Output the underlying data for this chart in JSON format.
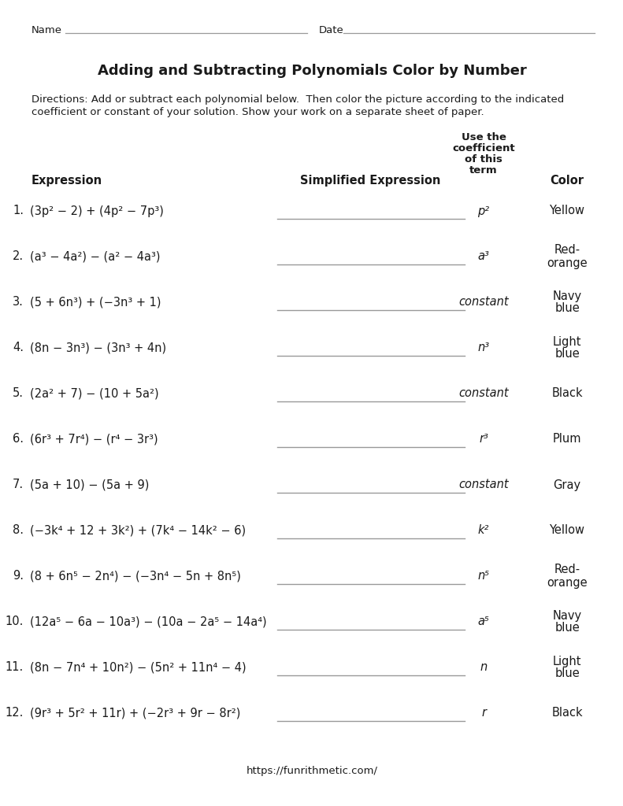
{
  "title": "Adding and Subtracting Polynomials Color by Number",
  "directions_line1": "Directions: Add or subtract each polynomial below.  Then color the picture according to the indicated",
  "directions_line2": "coefficient or constant of your solution. Show your work on a separate sheet of paper.",
  "name_label": "Name",
  "date_label": "Date",
  "problems": [
    {
      "num": "1.",
      "expr": "(3p² − 2) + (4p² − 7p³)",
      "term": "p²",
      "color_name": "Yellow",
      "two_line": false
    },
    {
      "num": "2.",
      "expr": "(a³ − 4a²) − (a² − 4a³)",
      "term": "a³",
      "color_name": "Red-\norange",
      "two_line": true
    },
    {
      "num": "3.",
      "expr": "(5 + 6n³) + (−3n³ + 1)",
      "term": "constant",
      "color_name": "Navy\nblue",
      "two_line": true
    },
    {
      "num": "4.",
      "expr": "(8n − 3n³) − (3n³ + 4n)",
      "term": "n³",
      "color_name": "Light\nblue",
      "two_line": true
    },
    {
      "num": "5.",
      "expr": "(2a² + 7) − (10 + 5a²)",
      "term": "constant",
      "color_name": "Black",
      "two_line": false
    },
    {
      "num": "6.",
      "expr": "(6r³ + 7r⁴) − (r⁴ − 3r³)",
      "term": "r³",
      "color_name": "Plum",
      "two_line": false
    },
    {
      "num": "7.",
      "expr": "(5a + 10) − (5a + 9)",
      "term": "constant",
      "color_name": "Gray",
      "two_line": false
    },
    {
      "num": "8.",
      "expr": "(−3k⁴ + 12 + 3k²) + (7k⁴ − 14k² − 6)",
      "term": "k²",
      "color_name": "Yellow",
      "two_line": false
    },
    {
      "num": "9.",
      "expr": "(8 + 6n⁵ − 2n⁴) − (−3n⁴ − 5n + 8n⁵)",
      "term": "n⁵",
      "color_name": "Red-\norange",
      "two_line": true
    },
    {
      "num": "10.",
      "expr": "(12a⁵ − 6a − 10a³) − (10a − 2a⁵ − 14a⁴)",
      "term": "a⁵",
      "color_name": "Navy\nblue",
      "two_line": true
    },
    {
      "num": "11.",
      "expr": "(8n − 7n⁴ + 10n²) − (5n² + 11n⁴ − 4)",
      "term": "n",
      "color_name": "Light\nblue",
      "two_line": true
    },
    {
      "num": "12.",
      "expr": "(9r³ + 5r² + 11r) + (−2r³ + 9r − 8r²)",
      "term": "r",
      "color_name": "Black",
      "two_line": false
    }
  ],
  "footer": "https://funrithmetic.com/",
  "bg_color": "#ffffff",
  "text_color": "#1a1a1a",
  "line_color": "#999999"
}
